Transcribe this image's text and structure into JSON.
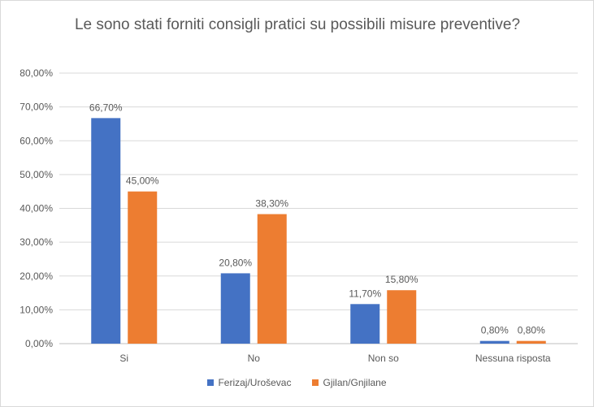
{
  "chart_data": {
    "type": "bar",
    "title": "Le sono stati forniti consigli pratici su possibili misure preventive?",
    "categories": [
      "Si",
      "No",
      "Non so",
      "Nessuna risposta"
    ],
    "series": [
      {
        "name": "Ferizaj/Uroševac",
        "color": "#4472C4",
        "values": [
          66.7,
          20.8,
          11.7,
          0.8
        ],
        "labels": [
          "66,70%",
          "20,80%",
          "11,70%",
          "0,80%"
        ]
      },
      {
        "name": "Gjilan/Gnjilane",
        "color": "#ED7D31",
        "values": [
          45.0,
          38.3,
          15.8,
          0.8
        ],
        "labels": [
          "45,00%",
          "38,30%",
          "15,80%",
          "0,80%"
        ]
      }
    ],
    "ylim": [
      0,
      80
    ],
    "yticks": [
      "0,00%",
      "10,00%",
      "20,00%",
      "30,00%",
      "40,00%",
      "50,00%",
      "60,00%",
      "70,00%",
      "80,00%"
    ],
    "grid": true,
    "legend_position": "bottom"
  }
}
